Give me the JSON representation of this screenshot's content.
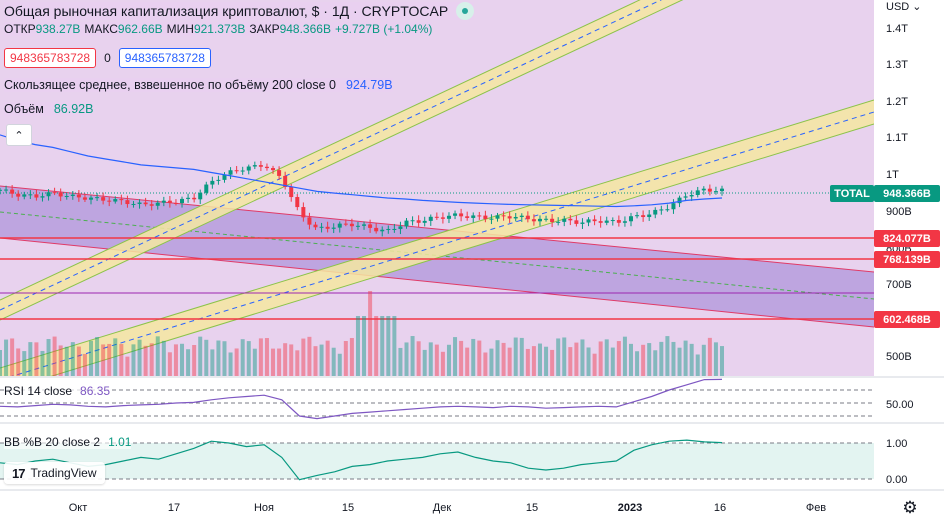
{
  "header": {
    "title": "Общая рыночная капитализация криптовалют, $ · 1Д · CRYPTOCAP",
    "ohlc": [
      {
        "label": "ОТКР",
        "value": "938.27B"
      },
      {
        "label": "МАКС",
        "value": "962.66B"
      },
      {
        "label": "МИН",
        "value": "921.373B"
      },
      {
        "label": "ЗАКР",
        "value": "948.366B"
      },
      {
        "label": "",
        "value": "+9.727B (+1.04%)"
      }
    ],
    "box_left": "948365783728",
    "box_mid": "0",
    "box_right": "948365783728",
    "vwma_label": "Скользящее среднее, взвешенное по объёму 200 close 0",
    "vwma_value": "924.79B",
    "volume_label": "Объём",
    "volume_value": "86.92B",
    "collapse_icon": "chevron-up-icon"
  },
  "rsi": {
    "label": "RSI 14 close",
    "value": "86.35"
  },
  "bb": {
    "label": "BB %B 20 close 2",
    "value": "1.01"
  },
  "logo": {
    "text": "TradingView"
  },
  "price_axis": {
    "currency": "USD",
    "ticks": [
      "1.4T",
      "1.3T",
      "1.2T",
      "1.1T",
      "1T",
      "900B",
      "800B",
      "700B",
      "500B"
    ]
  },
  "rsi_axis": {
    "ticks": [
      "50.00"
    ]
  },
  "bb_axis": {
    "ticks": [
      "1.00",
      "0.00"
    ]
  },
  "time_axis": {
    "ticks": [
      "Окт",
      "17",
      "Ноя",
      "15",
      "Дек",
      "15",
      "2023",
      "16",
      "Фев"
    ]
  },
  "price_labels": [
    {
      "text": "TOTAL",
      "color": "#089981"
    },
    {
      "text": "948.366B",
      "color": "#089981"
    },
    {
      "text": "824.077B",
      "color": "#f23645"
    },
    {
      "text": "768.139B",
      "color": "#f23645"
    },
    {
      "text": "602.468B",
      "color": "#f23645"
    }
  ],
  "colors": {
    "up": "#089981",
    "down": "#f23645",
    "vwma": "#2962ff",
    "rsi": "#7e57c2",
    "bb": "#089981",
    "hline": "#f23645",
    "bg_tint": "#e8d2ee"
  },
  "chart_data": [
    {
      "type": "candlestick",
      "title": "Общая рыночная капитализация криптовалют, $ · 1Д · CRYPTOCAP",
      "x_ticks": [
        "Окт",
        "17",
        "Ноя",
        "15",
        "Дек",
        "15",
        "2023",
        "16",
        "Фев"
      ],
      "y_scale": "log",
      "ylim": [
        440,
        1500
      ],
      "y_unit": "B",
      "dates": [
        "2022-09-21",
        "2022-09-24",
        "2022-09-27",
        "2022-09-30",
        "2022-10-03",
        "2022-10-06",
        "2022-10-09",
        "2022-10-12",
        "2022-10-15",
        "2022-10-18",
        "2022-10-21",
        "2022-10-24",
        "2022-10-27",
        "2022-10-30",
        "2022-11-02",
        "2022-11-05",
        "2022-11-08",
        "2022-11-09",
        "2022-11-11",
        "2022-11-14",
        "2022-11-17",
        "2022-11-20",
        "2022-11-23",
        "2022-11-26",
        "2022-11-29",
        "2022-12-02",
        "2022-12-05",
        "2022-12-08",
        "2022-12-11",
        "2022-12-14",
        "2022-12-17",
        "2022-12-20",
        "2022-12-23",
        "2022-12-26",
        "2022-12-29",
        "2023-01-01",
        "2023-01-04",
        "2023-01-07",
        "2023-01-10",
        "2023-01-12",
        "2023-01-14",
        "2023-01-16"
      ],
      "close": [
        950,
        935,
        930,
        940,
        930,
        925,
        920,
        915,
        905,
        910,
        915,
        925,
        975,
        1005,
        1020,
        1030,
        985,
        880,
        835,
        845,
        850,
        840,
        830,
        855,
        860,
        870,
        875,
        870,
        868,
        872,
        865,
        860,
        860,
        855,
        860,
        855,
        870,
        880,
        900,
        935,
        950,
        948
      ],
      "overlays": [
        {
          "name": "VWMA 200",
          "values": [
            1135,
            1115,
            1100,
            1090,
            1075,
            1060,
            1050,
            1040,
            1030,
            1025,
            1020,
            1015,
            1005,
            995,
            985,
            975,
            965,
            955,
            945,
            940,
            935,
            930,
            925,
            922,
            918,
            915,
            912,
            910,
            908,
            906,
            905,
            904,
            903,
            902,
            901,
            900,
            902,
            905,
            910,
            918,
            922,
            925
          ]
        }
      ],
      "horizontal_levels": [
        824.077,
        768.139,
        602.468
      ],
      "last_value": 948.366
    },
    {
      "type": "bar",
      "title": "Объём",
      "values_count": 120,
      "last_value": "86.92B"
    },
    {
      "type": "line",
      "title": "RSI 14 close",
      "ylim": [
        0,
        100
      ],
      "values": [
        45,
        44,
        46,
        48,
        47,
        45,
        44,
        46,
        47,
        48,
        50,
        51,
        55,
        58,
        60,
        62,
        55,
        30,
        26,
        30,
        34,
        36,
        38,
        40,
        42,
        44,
        45,
        44,
        43,
        45,
        44,
        42,
        43,
        44,
        45,
        44,
        52,
        60,
        70,
        78,
        86,
        86.35
      ],
      "last_value": 86.35
    },
    {
      "type": "line",
      "title": "BB %B 20 close 2",
      "ylim": [
        -0.1,
        1.2
      ],
      "values": [
        0.45,
        0.4,
        0.5,
        0.55,
        0.45,
        0.35,
        0.4,
        0.5,
        0.6,
        0.55,
        0.7,
        0.85,
        1.05,
        1.0,
        0.9,
        0.95,
        0.6,
        -0.02,
        0.1,
        0.2,
        0.35,
        0.4,
        0.5,
        0.55,
        0.6,
        0.7,
        0.75,
        0.6,
        0.5,
        0.45,
        0.3,
        0.25,
        0.3,
        0.4,
        0.45,
        0.5,
        0.8,
        0.95,
        1.05,
        1.08,
        1.03,
        1.01
      ],
      "last_value": 1.01
    }
  ]
}
